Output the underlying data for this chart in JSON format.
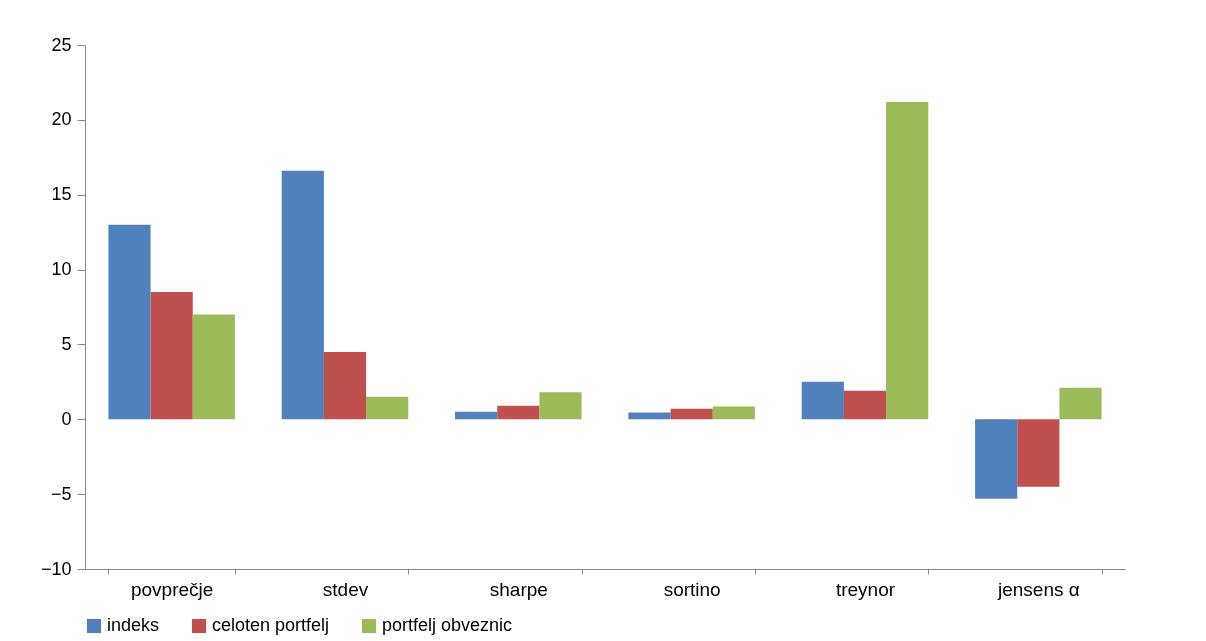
{
  "chart_data": {
    "type": "bar",
    "categories": [
      "povprečje",
      "stdev",
      "sharpe",
      "sortino",
      "treynor",
      "jensens α"
    ],
    "series": [
      {
        "name": "indeks",
        "color": "#4f81bd",
        "values": [
          13.0,
          16.6,
          0.5,
          0.45,
          2.5,
          -5.3
        ]
      },
      {
        "name": "celoten portfelj",
        "color": "#c0504d",
        "values": [
          8.5,
          4.5,
          0.9,
          0.7,
          1.9,
          -4.5
        ]
      },
      {
        "name": "portfelj obveznic",
        "color": "#9bbb59",
        "values": [
          7.0,
          1.5,
          1.8,
          0.85,
          21.2,
          2.1
        ]
      }
    ],
    "ylim": [
      -10,
      25
    ],
    "yticks": [
      -10,
      -5,
      0,
      5,
      10,
      15,
      20,
      25
    ],
    "grid": false,
    "legend": "bottom"
  }
}
